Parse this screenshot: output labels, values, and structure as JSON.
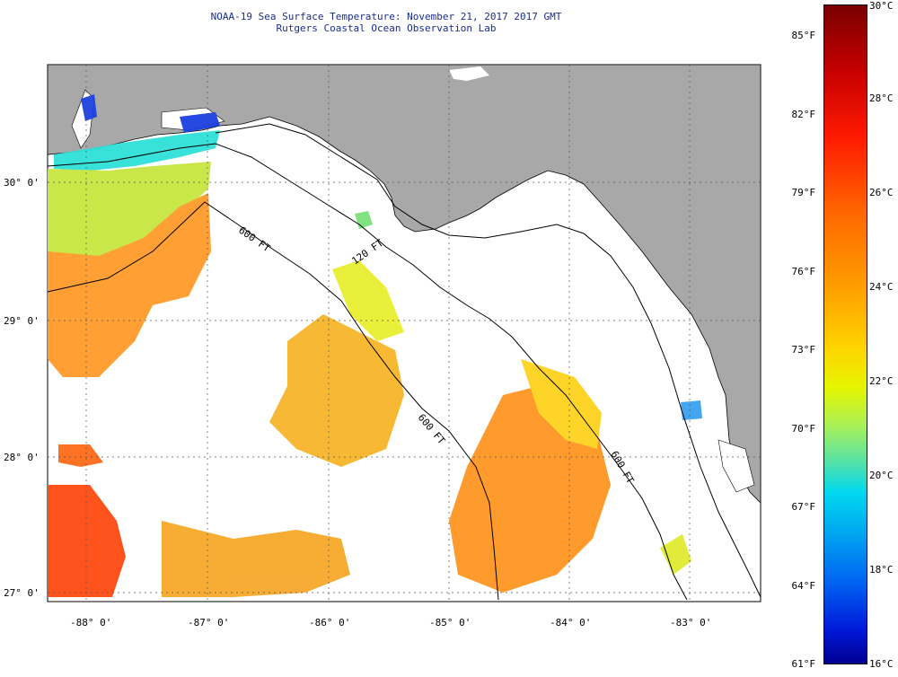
{
  "header": {
    "title_line1": "NOAA-19 Sea Surface Temperature:  November 21, 2017 2017 GMT",
    "title_line2": "Rutgers Coastal Ocean Observation Lab"
  },
  "map": {
    "lon_labels": [
      "-88° 0'",
      "-87° 0'",
      "-86° 0'",
      "-85° 0'",
      "-84° 0'",
      "-83° 0'"
    ],
    "lat_labels": [
      "30° 0'",
      "29° 0'",
      "28° 0'",
      "27° 0'"
    ],
    "contours": [
      "120 FT",
      "600 FT",
      "600 FT",
      "600 FT"
    ],
    "colors": {
      "land": "#a8a8a8",
      "ocean_nodata": "#ffffff",
      "warm": "#ff8a1a",
      "mild": "#f5c02a",
      "cool": "#2ee0d8",
      "cold": "#1a40e0"
    }
  },
  "colorbar": {
    "fahrenheit": [
      "85°F",
      "82°F",
      "79°F",
      "76°F",
      "73°F",
      "70°F",
      "67°F",
      "64°F",
      "61°F"
    ],
    "celsius": [
      "30°C",
      "28°C",
      "26°C",
      "24°C",
      "22°C",
      "20°C",
      "18°C",
      "16°C"
    ],
    "gradient": [
      "#7a0000",
      "#ff1a00",
      "#ff9a00",
      "#ffd400",
      "#a8f05a",
      "#00d8f0",
      "#0060f0",
      "#000090"
    ]
  }
}
